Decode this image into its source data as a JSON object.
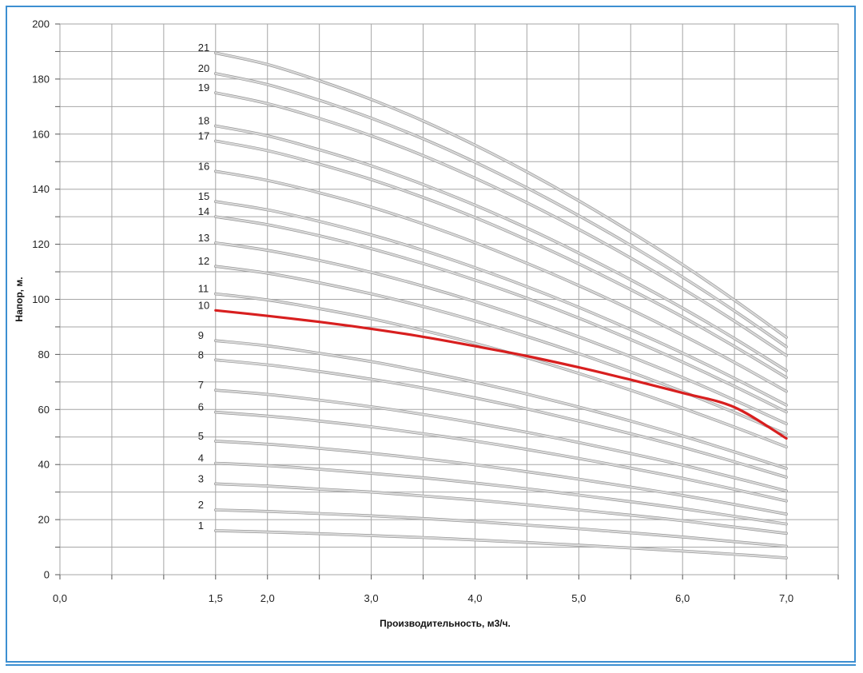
{
  "chart_data": {
    "type": "line",
    "title": "",
    "xlabel": "Производительность, м3/ч.",
    "ylabel": "Напор, м.",
    "xlim": [
      0,
      7.5
    ],
    "ylim": [
      0,
      200
    ],
    "grid": true,
    "x_ticks": [
      {
        "v": 0,
        "label": "0,0"
      },
      {
        "v": 1.5,
        "label": "1,5"
      },
      {
        "v": 2,
        "label": "2,0"
      },
      {
        "v": 3,
        "label": "3,0"
      },
      {
        "v": 4,
        "label": "4,0"
      },
      {
        "v": 5,
        "label": "5,0"
      },
      {
        "v": 6,
        "label": "6,0"
      },
      {
        "v": 7,
        "label": "7,0"
      }
    ],
    "y_ticks": [
      {
        "v": 0,
        "label": "0"
      },
      {
        "v": 20,
        "label": "20"
      },
      {
        "v": 40,
        "label": "40"
      },
      {
        "v": 60,
        "label": "60"
      },
      {
        "v": 80,
        "label": "80"
      },
      {
        "v": 100,
        "label": "100"
      },
      {
        "v": 120,
        "label": "120"
      },
      {
        "v": 140,
        "label": "140"
      },
      {
        "v": 160,
        "label": "160"
      },
      {
        "v": 180,
        "label": "180"
      },
      {
        "v": 200,
        "label": "200"
      }
    ],
    "x": [
      1.5,
      2.0,
      2.5,
      3.0,
      3.5,
      4.0,
      4.5,
      5.0,
      5.5,
      6.0,
      6.5,
      7.0
    ],
    "series": [
      {
        "name": "1",
        "values": [
          16.0,
          15.5,
          14.9,
          14.2,
          13.5,
          12.6,
          11.7,
          10.7,
          9.7,
          8.6,
          7.4,
          6.1
        ]
      },
      {
        "name": "2",
        "values": [
          23.5,
          23.0,
          22.2,
          21.4,
          20.4,
          19.3,
          18.0,
          16.7,
          15.2,
          13.7,
          12.0,
          10.3
        ]
      },
      {
        "name": "3",
        "values": [
          33.0,
          32.2,
          31.1,
          30.0,
          28.6,
          27.1,
          25.4,
          23.5,
          21.6,
          19.6,
          17.3,
          15.0
        ]
      },
      {
        "name": "4",
        "values": [
          40.5,
          39.6,
          38.3,
          36.8,
          35.2,
          33.3,
          31.2,
          28.9,
          26.5,
          24.0,
          21.2,
          18.4
        ]
      },
      {
        "name": "5",
        "values": [
          48.5,
          47.4,
          45.9,
          44.1,
          42.1,
          39.9,
          37.4,
          34.7,
          31.8,
          28.8,
          25.5,
          22.0
        ]
      },
      {
        "name": "6",
        "values": [
          59.0,
          57.6,
          55.8,
          53.7,
          51.2,
          48.5,
          45.5,
          42.2,
          38.7,
          35.0,
          31.0,
          26.8
        ]
      },
      {
        "name": "7",
        "values": [
          67.0,
          65.5,
          63.4,
          61.0,
          58.2,
          55.1,
          51.7,
          48.0,
          44.0,
          39.8,
          35.2,
          30.4
        ]
      },
      {
        "name": "8",
        "values": [
          78.0,
          76.2,
          73.8,
          71.0,
          67.8,
          64.2,
          60.2,
          55.8,
          51.2,
          46.3,
          41.0,
          35.4
        ]
      },
      {
        "name": "9",
        "values": [
          85.0,
          83.1,
          80.4,
          77.4,
          73.8,
          69.9,
          65.6,
          60.9,
          55.8,
          50.4,
          44.6,
          38.6
        ]
      },
      {
        "name": "10",
        "values": [
          96.0,
          94.0,
          91.8,
          89.3,
          86.4,
          83.0,
          79.4,
          75.3,
          70.8,
          66.0,
          60.8,
          49.5
        ]
      },
      {
        "name": "11",
        "values": [
          102.0,
          99.8,
          96.6,
          93.0,
          88.7,
          84.0,
          78.8,
          73.1,
          67.0,
          60.5,
          53.6,
          46.4
        ]
      },
      {
        "name": "12",
        "values": [
          112.0,
          109.5,
          106.0,
          102.0,
          97.4,
          92.2,
          86.5,
          80.3,
          73.6,
          66.5,
          58.9,
          51.0
        ]
      },
      {
        "name": "13",
        "values": [
          120.5,
          117.8,
          114.1,
          109.8,
          104.8,
          99.2,
          93.0,
          86.4,
          79.2,
          71.6,
          63.4,
          54.8
        ]
      },
      {
        "name": "14",
        "values": [
          130.0,
          127.1,
          123.1,
          118.4,
          113.0,
          107.0,
          100.4,
          93.2,
          85.4,
          77.2,
          68.4,
          59.1
        ]
      },
      {
        "name": "15",
        "values": [
          135.5,
          132.5,
          128.3,
          123.4,
          117.8,
          111.5,
          104.6,
          97.1,
          89.0,
          80.5,
          71.3,
          61.6
        ]
      },
      {
        "name": "16",
        "values": [
          146.5,
          143.2,
          138.7,
          133.5,
          127.4,
          120.6,
          113.1,
          105.0,
          96.3,
          87.0,
          77.1,
          66.6
        ]
      },
      {
        "name": "17",
        "values": [
          157.5,
          154.0,
          149.1,
          143.5,
          137.0,
          129.7,
          121.6,
          112.9,
          103.5,
          93.6,
          82.9,
          71.6
        ]
      },
      {
        "name": "18",
        "values": [
          163.0,
          159.4,
          154.3,
          148.5,
          141.7,
          134.2,
          125.9,
          116.8,
          107.1,
          96.8,
          85.8,
          74.1
        ]
      },
      {
        "name": "19",
        "values": [
          175.0,
          171.1,
          165.7,
          159.4,
          152.2,
          144.0,
          135.1,
          125.4,
          115.0,
          103.9,
          92.1,
          79.6
        ]
      },
      {
        "name": "20",
        "values": [
          182.0,
          178.0,
          172.3,
          165.8,
          158.3,
          149.8,
          140.5,
          130.4,
          119.6,
          108.1,
          95.8,
          82.8
        ]
      },
      {
        "name": "21",
        "values": [
          189.5,
          185.3,
          179.4,
          172.6,
          164.8,
          156.0,
          146.3,
          135.8,
          124.5,
          112.6,
          99.7,
          86.2
        ]
      }
    ],
    "highlight_series": "10",
    "colors": {
      "curve": "#d9d9d9",
      "curve_edge": "#9a9a9a",
      "highlight": "#d81f1f",
      "grid": "#a6a6a6",
      "frame": "#3d8fd1"
    }
  }
}
